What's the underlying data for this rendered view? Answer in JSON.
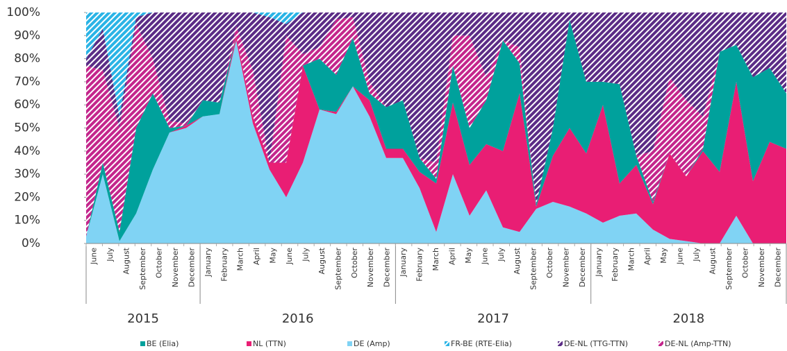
{
  "chart_data": {
    "type": "stacked_area",
    "category_groups": [
      {
        "label": "2015",
        "categories": [
          "June",
          "July",
          "August",
          "September",
          "October",
          "November",
          "December"
        ]
      },
      {
        "label": "2016",
        "categories": [
          "January",
          "February",
          "March",
          "April",
          "May",
          "June",
          "July",
          "August",
          "September",
          "October",
          "November",
          "December"
        ]
      },
      {
        "label": "2017",
        "categories": [
          "January",
          "February",
          "March",
          "April",
          "May",
          "June",
          "July",
          "August",
          "September",
          "October",
          "November",
          "December"
        ]
      },
      {
        "label": "2018",
        "categories": [
          "January",
          "February",
          "March",
          "April",
          "May",
          "June",
          "July",
          "August",
          "September",
          "October",
          "November",
          "December"
        ]
      }
    ],
    "series": [
      {
        "name": "BE (Elia)",
        "color": "#00a19c",
        "hatched": false,
        "values": [
          0,
          5,
          4,
          37,
          33,
          2,
          0,
          7,
          5,
          0,
          0,
          0,
          0,
          0,
          22,
          16,
          21,
          3,
          18,
          21,
          6,
          2,
          16,
          16,
          19,
          48,
          13,
          1,
          12,
          47,
          31,
          10,
          43,
          4,
          1,
          0,
          0,
          1,
          52,
          16,
          45,
          32,
          24
        ]
      },
      {
        "name": "NL (TTN)",
        "color": "#e91e74",
        "hatched": false,
        "values": [
          0,
          0,
          0,
          0,
          0,
          0,
          1,
          0,
          0,
          2,
          3,
          3,
          15,
          42,
          0,
          1,
          0,
          7,
          4,
          4,
          7,
          21,
          31,
          22,
          20,
          33,
          60,
          1,
          20,
          34,
          26,
          51,
          14,
          21,
          11,
          37,
          28,
          40,
          31,
          58,
          27,
          44,
          41
        ]
      },
      {
        "name": "DE (Amp)",
        "color": "#80d3f4",
        "hatched": false,
        "values": [
          3,
          30,
          1,
          13,
          32,
          48,
          50,
          55,
          56,
          88,
          52,
          32,
          20,
          35,
          58,
          56,
          68,
          55,
          37,
          37,
          24,
          5,
          30,
          12,
          23,
          7,
          5,
          15,
          18,
          16,
          13,
          9,
          12,
          13,
          6,
          2,
          1,
          0,
          0,
          12,
          0,
          0,
          0
        ]
      },
      {
        "name": "FR-BE (RTE-Elia)",
        "color": "#2ab4e6",
        "hatched": true,
        "values": [
          20,
          7,
          45,
          2,
          0,
          0,
          0,
          0,
          0,
          0,
          0,
          2,
          5,
          0,
          0,
          0,
          0,
          0,
          0,
          0,
          0,
          0,
          0,
          0,
          0,
          0,
          0,
          0,
          0,
          0,
          0,
          0,
          0,
          0,
          0,
          0,
          0,
          0,
          0,
          0,
          0,
          0,
          0
        ]
      },
      {
        "name": "DE-NL (TTG-TTN)",
        "color": "#5b2c86",
        "hatched": true,
        "values": [
          3,
          18,
          5,
          3,
          20,
          47,
          48,
          38,
          39,
          6,
          25,
          63,
          5,
          18,
          15,
          3,
          2,
          30,
          41,
          38,
          63,
          65,
          10,
          10,
          28,
          12,
          15,
          83,
          50,
          3,
          30,
          30,
          31,
          62,
          60,
          28,
          38,
          45,
          17,
          14,
          28,
          24,
          35
        ]
      },
      {
        "name": "DE-NL (Amp-TTN)",
        "color": "#c4268c",
        "hatched": true,
        "values": [
          74,
          40,
          45,
          45,
          15,
          3,
          1,
          0,
          0,
          4,
          20,
          0,
          55,
          5,
          5,
          24,
          9,
          5,
          0,
          0,
          0,
          7,
          13,
          40,
          10,
          0,
          7,
          0,
          0,
          0,
          0,
          0,
          0,
          0,
          22,
          33,
          33,
          14,
          0,
          0,
          0,
          0,
          0
        ]
      }
    ],
    "ylim": [
      0,
      100
    ],
    "yticks": [
      {
        "value": 0,
        "label": "0%"
      },
      {
        "value": 10,
        "label": "10%"
      },
      {
        "value": 20,
        "label": "20%"
      },
      {
        "value": 30,
        "label": "30%"
      },
      {
        "value": 40,
        "label": "40%"
      },
      {
        "value": 50,
        "label": "50%"
      },
      {
        "value": 60,
        "label": "60%"
      },
      {
        "value": 70,
        "label": "70%"
      },
      {
        "value": 80,
        "label": "80%"
      },
      {
        "value": 90,
        "label": "90%"
      },
      {
        "value": 100,
        "label": "100%"
      }
    ]
  }
}
